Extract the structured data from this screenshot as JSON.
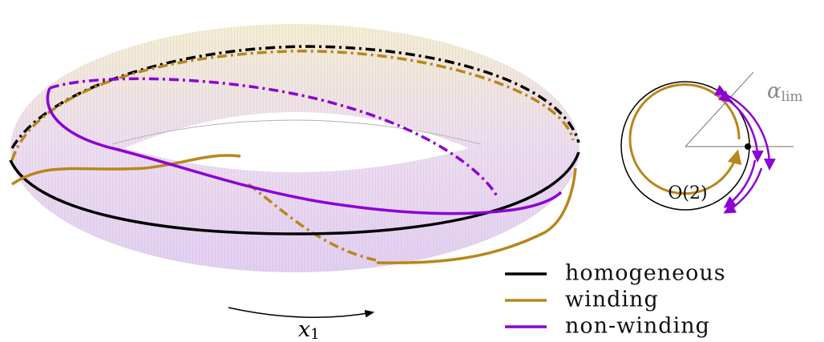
{
  "legend": [
    {
      "label": "homogeneous",
      "color": "#000000"
    },
    {
      "label": "winding",
      "color": "#b8861b"
    },
    {
      "label": "non-winding",
      "color": "#8c00d4"
    }
  ],
  "labels": {
    "x_axis": "x",
    "x_axis_sub": "1",
    "alpha": "α",
    "alpha_sub": "lim",
    "group": "O(2)"
  }
}
